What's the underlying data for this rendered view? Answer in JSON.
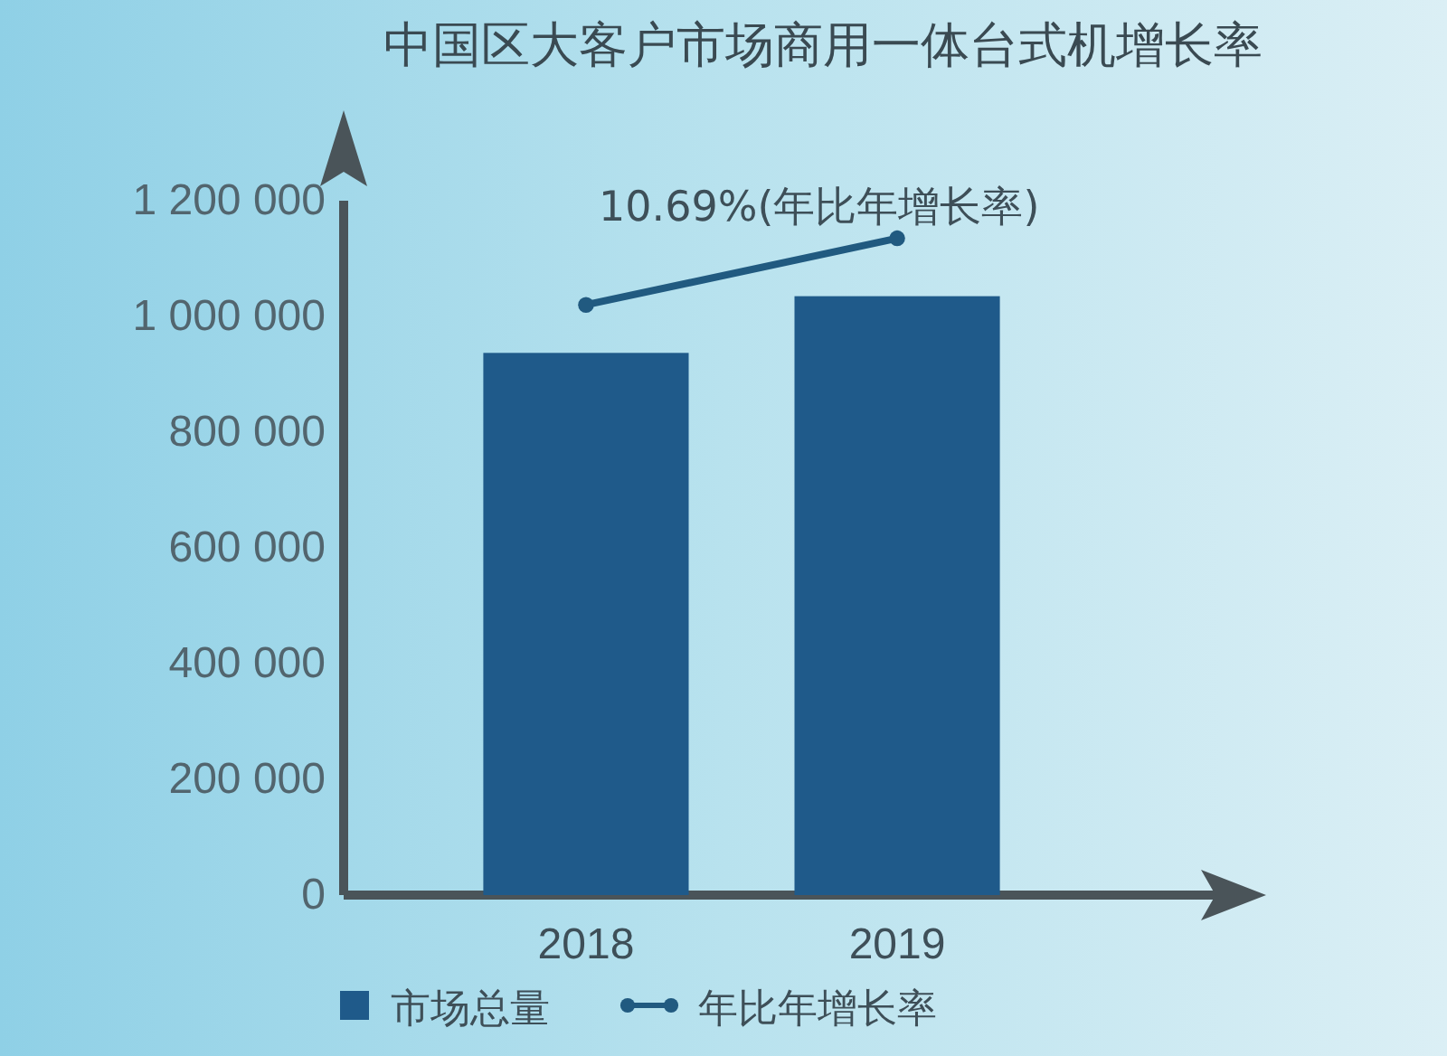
{
  "chart_data": {
    "type": "bar",
    "title": "中国区大客户市场商用一体台式机增长率",
    "categories": [
      "2018",
      "2019"
    ],
    "series": [
      {
        "name": "市场总量",
        "color": "#1f5a8a",
        "values": [
          937000,
          1035000
        ]
      },
      {
        "name": "年比年增长率",
        "type": "line",
        "color": "#215a80",
        "marker": "circle",
        "values": [
          1020000,
          1135000
        ]
      }
    ],
    "annotations": [
      {
        "text": "10.69%(年比年增长率)",
        "x": "2019",
        "y": 1135000
      }
    ],
    "ylim": [
      0,
      1200000
    ],
    "yticks": [
      {
        "value": 0,
        "label": "0"
      },
      {
        "value": 200000,
        "label": "200 000"
      },
      {
        "value": 400000,
        "label": "400 000"
      },
      {
        "value": 600000,
        "label": "600 000"
      },
      {
        "value": 800000,
        "label": "800 000"
      },
      {
        "value": 1000000,
        "label": "1 000 000"
      },
      {
        "value": 1200000,
        "label": "1 200 000"
      }
    ],
    "grid": false,
    "legend": "bottom left"
  }
}
